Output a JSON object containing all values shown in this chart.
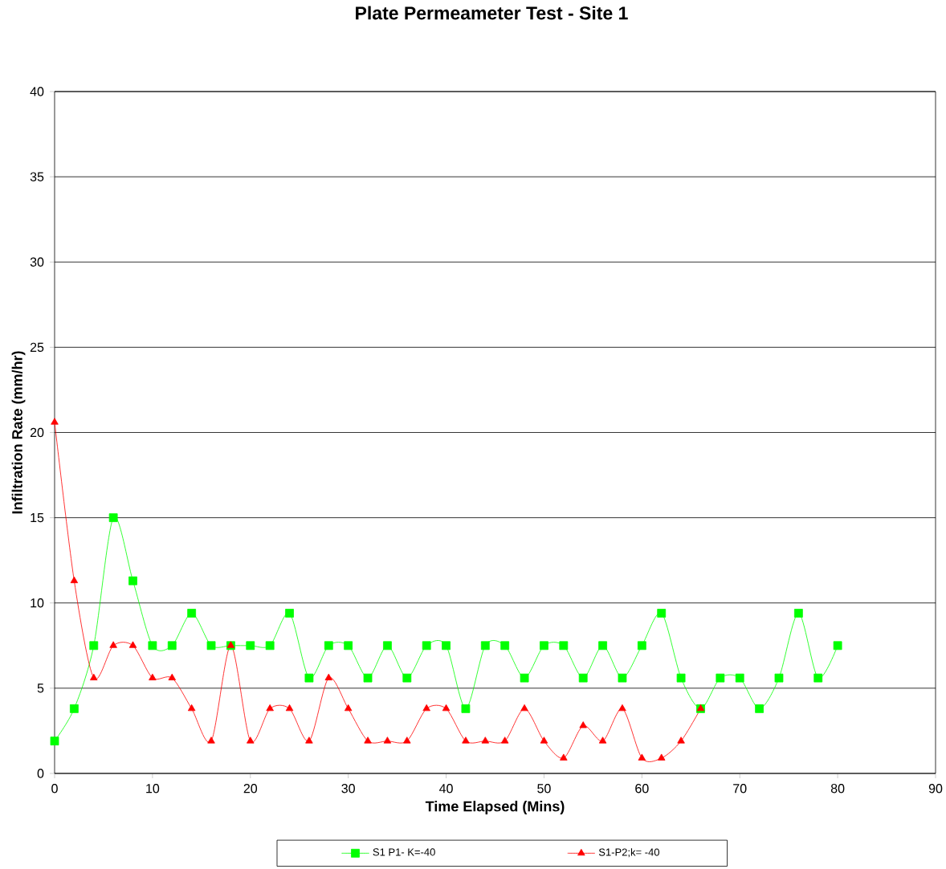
{
  "chart_data": {
    "type": "line",
    "title": "Plate Permeameter Test - Site 1",
    "xlabel": "Time Elapsed (Mins)",
    "ylabel": "Infiltration Rate (mm/hr)",
    "xlim": [
      0,
      90
    ],
    "xticks": [
      0,
      10,
      20,
      30,
      40,
      50,
      60,
      70,
      80,
      90
    ],
    "ylim": [
      0,
      40
    ],
    "yticks": [
      0,
      5,
      10,
      15,
      20,
      25,
      30,
      35,
      40
    ],
    "grid": "y",
    "legend": "bottom",
    "line_style": "solid",
    "series": [
      {
        "name": "S1 P1- K=-40",
        "color": "#00ff00",
        "marker": "square",
        "x": [
          0,
          2,
          4,
          6,
          8,
          10,
          12,
          14,
          16,
          18,
          20,
          22,
          24,
          26,
          28,
          30,
          32,
          34,
          36,
          38,
          40,
          42,
          44,
          46,
          48,
          50,
          52,
          54,
          56,
          58,
          60,
          62,
          64,
          66,
          68,
          70,
          72,
          74,
          76,
          78,
          80
        ],
        "values": [
          1.9,
          3.8,
          7.5,
          15,
          11.3,
          7.5,
          7.5,
          9.4,
          7.5,
          7.5,
          7.5,
          7.5,
          9.4,
          5.6,
          7.5,
          7.5,
          5.6,
          7.5,
          5.6,
          7.5,
          7.5,
          3.8,
          7.5,
          7.5,
          5.6,
          7.5,
          7.5,
          5.6,
          7.5,
          5.6,
          7.5,
          9.4,
          5.6,
          3.8,
          5.6,
          5.6,
          3.8,
          5.6,
          9.4,
          5.6,
          7.5
        ]
      },
      {
        "name": "S1-P2;k= -40",
        "color": "#ff0000",
        "marker": "triangle",
        "x": [
          0,
          2,
          4,
          6,
          8,
          10,
          12,
          14,
          16,
          18,
          20,
          22,
          24,
          26,
          28,
          30,
          32,
          34,
          36,
          38,
          40,
          42,
          44,
          46,
          48,
          50,
          52,
          54,
          56,
          58,
          60,
          62,
          64,
          66
        ],
        "values": [
          20.6,
          11.3,
          5.6,
          7.5,
          7.5,
          5.6,
          5.6,
          3.8,
          1.9,
          7.5,
          1.9,
          3.8,
          3.8,
          1.9,
          5.6,
          3.8,
          1.9,
          1.9,
          1.9,
          3.8,
          3.8,
          1.9,
          1.9,
          1.9,
          3.8,
          1.9,
          0.9,
          2.8,
          1.9,
          3.8,
          0.9,
          0.9,
          1.9,
          3.8
        ]
      }
    ]
  }
}
